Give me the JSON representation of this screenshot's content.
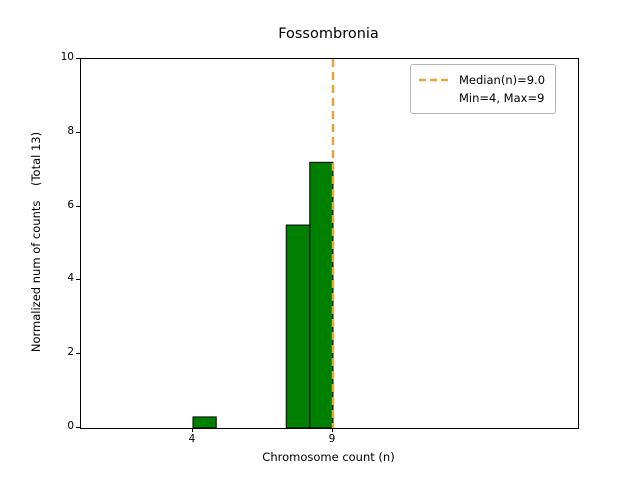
{
  "chart_data": {
    "type": "bar",
    "title": "Fossombronia",
    "xlabel": "Chromosome count (n)",
    "ylabel": "Normalized num of counts    (Total 13)",
    "xlim": [
      0,
      17.75
    ],
    "ylim": [
      0,
      10
    ],
    "xticks": [
      4,
      9
    ],
    "yticks": [
      0,
      2,
      4,
      6,
      8,
      10
    ],
    "grid": false,
    "bars": [
      {
        "x0": 4.0,
        "x1": 4.83,
        "height": 0.3
      },
      {
        "x0": 7.33,
        "x1": 8.17,
        "height": 5.5
      },
      {
        "x0": 8.17,
        "x1": 9.0,
        "height": 7.2
      }
    ],
    "bar_color": "#008000",
    "bar_edge_color": "#000000",
    "median_line": {
      "x": 9.0,
      "color": "#e8a33c",
      "style": "dashed"
    },
    "legend": {
      "position": "upper right",
      "entries": [
        {
          "label": "Median(n)=9.0",
          "swatch": "dashed-line"
        },
        {
          "label": "Min=4, Max=9",
          "swatch": "none"
        }
      ]
    }
  }
}
